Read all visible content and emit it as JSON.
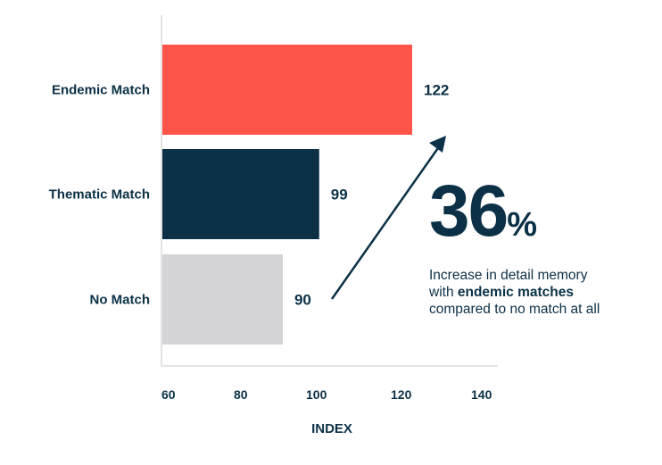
{
  "chart_data": {
    "type": "bar",
    "orientation": "horizontal",
    "categories": [
      "Endemic Match",
      "Thematic Match",
      "No Match"
    ],
    "values": [
      122,
      99,
      90
    ],
    "colors": [
      "#ff5449",
      "#0c3147",
      "#d4d4d6"
    ],
    "xlabel": "INDEX",
    "ylabel": "",
    "xlim": [
      60,
      140
    ],
    "xticks": [
      "60",
      "80",
      "100",
      "120",
      "140"
    ],
    "grid": false
  },
  "callout": {
    "number": "36",
    "unit": "%",
    "line1": "Increase in detail memory",
    "line2_prefix": "with ",
    "line2_bold": "endemic matches",
    "line3": "compared to no match at all"
  },
  "text_color": "#0c3147"
}
